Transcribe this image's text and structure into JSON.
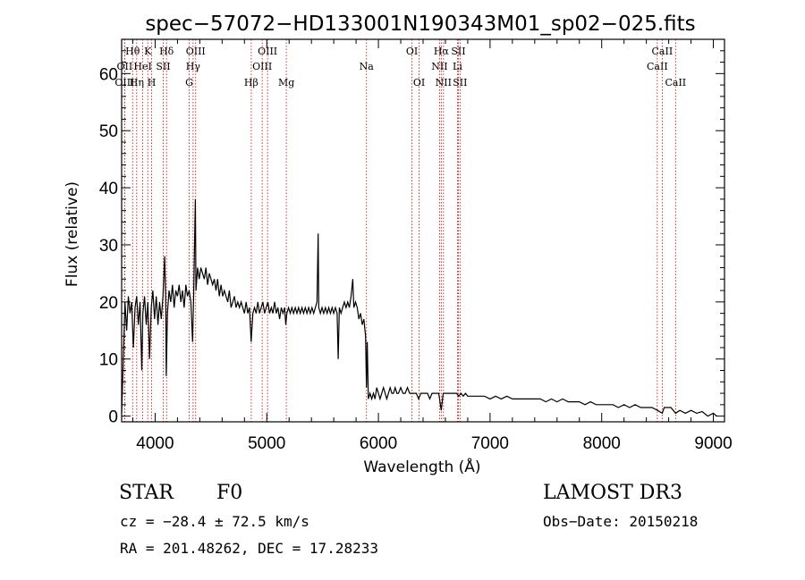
{
  "chart_data": {
    "type": "line",
    "title": "spec−57072−HD133001N190343M01_sp02−025.fits",
    "xlabel": "Wavelength (Å)",
    "ylabel": "Flux (relative)",
    "xlim": [
      3700,
      9100
    ],
    "ylim": [
      -1,
      66
    ],
    "xticks": [
      4000,
      5000,
      6000,
      7000,
      8000,
      9000
    ],
    "yticks": [
      0,
      10,
      20,
      30,
      40,
      50,
      60
    ],
    "series": [
      {
        "name": "spectrum",
        "points": [
          [
            3700,
            0.5
          ],
          [
            3715,
            10
          ],
          [
            3730,
            20
          ],
          [
            3745,
            15
          ],
          [
            3760,
            21
          ],
          [
            3775,
            18
          ],
          [
            3790,
            20
          ],
          [
            3805,
            12
          ],
          [
            3820,
            19
          ],
          [
            3835,
            21
          ],
          [
            3850,
            16
          ],
          [
            3865,
            20
          ],
          [
            3880,
            8
          ],
          [
            3890,
            18
          ],
          [
            3905,
            21
          ],
          [
            3920,
            16
          ],
          [
            3935,
            20
          ],
          [
            3950,
            10
          ],
          [
            3965,
            19
          ],
          [
            3980,
            22
          ],
          [
            3995,
            17
          ],
          [
            4010,
            21
          ],
          [
            4025,
            16
          ],
          [
            4040,
            20
          ],
          [
            4055,
            17
          ],
          [
            4070,
            21
          ],
          [
            4085,
            28
          ],
          [
            4095,
            20
          ],
          [
            4100,
            7
          ],
          [
            4110,
            18
          ],
          [
            4125,
            22
          ],
          [
            4140,
            20
          ],
          [
            4155,
            23
          ],
          [
            4170,
            19
          ],
          [
            4185,
            22
          ],
          [
            4200,
            21
          ],
          [
            4215,
            23
          ],
          [
            4230,
            20
          ],
          [
            4245,
            22
          ],
          [
            4260,
            19
          ],
          [
            4275,
            23
          ],
          [
            4290,
            21
          ],
          [
            4305,
            22
          ],
          [
            4320,
            20
          ],
          [
            4335,
            13
          ],
          [
            4345,
            21
          ],
          [
            4360,
            38
          ],
          [
            4366,
            22
          ],
          [
            4380,
            26
          ],
          [
            4395,
            24
          ],
          [
            4410,
            26
          ],
          [
            4425,
            25
          ],
          [
            4440,
            24
          ],
          [
            4455,
            26
          ],
          [
            4470,
            23
          ],
          [
            4485,
            25
          ],
          [
            4500,
            24
          ],
          [
            4515,
            23
          ],
          [
            4530,
            24
          ],
          [
            4545,
            22
          ],
          [
            4560,
            24
          ],
          [
            4575,
            21
          ],
          [
            4590,
            23
          ],
          [
            4605,
            21
          ],
          [
            4620,
            22
          ],
          [
            4635,
            21
          ],
          [
            4650,
            20
          ],
          [
            4665,
            22
          ],
          [
            4680,
            19
          ],
          [
            4695,
            20
          ],
          [
            4710,
            21
          ],
          [
            4725,
            19
          ],
          [
            4740,
            20
          ],
          [
            4755,
            19
          ],
          [
            4770,
            20
          ],
          [
            4785,
            19
          ],
          [
            4800,
            18
          ],
          [
            4815,
            20
          ],
          [
            4830,
            18
          ],
          [
            4845,
            19
          ],
          [
            4860,
            13
          ],
          [
            4875,
            18
          ],
          [
            4890,
            19
          ],
          [
            4905,
            18
          ],
          [
            4920,
            20
          ],
          [
            4935,
            18
          ],
          [
            4950,
            19
          ],
          [
            4965,
            20
          ],
          [
            4980,
            18
          ],
          [
            4995,
            19
          ],
          [
            5010,
            20
          ],
          [
            5025,
            18
          ],
          [
            5040,
            19
          ],
          [
            5055,
            18
          ],
          [
            5070,
            20
          ],
          [
            5085,
            18
          ],
          [
            5100,
            19
          ],
          [
            5115,
            17
          ],
          [
            5130,
            19
          ],
          [
            5145,
            18
          ],
          [
            5160,
            19
          ],
          [
            5170,
            16
          ],
          [
            5180,
            18
          ],
          [
            5195,
            19
          ],
          [
            5210,
            18
          ],
          [
            5225,
            19
          ],
          [
            5240,
            18
          ],
          [
            5255,
            19
          ],
          [
            5270,
            18
          ],
          [
            5285,
            19
          ],
          [
            5300,
            18
          ],
          [
            5315,
            19
          ],
          [
            5330,
            18
          ],
          [
            5345,
            19
          ],
          [
            5360,
            18
          ],
          [
            5375,
            19
          ],
          [
            5390,
            18
          ],
          [
            5405,
            19
          ],
          [
            5420,
            18
          ],
          [
            5435,
            19
          ],
          [
            5450,
            20
          ],
          [
            5460,
            32
          ],
          [
            5466,
            19
          ],
          [
            5480,
            18
          ],
          [
            5495,
            19
          ],
          [
            5510,
            18
          ],
          [
            5525,
            19
          ],
          [
            5540,
            18
          ],
          [
            5555,
            19
          ],
          [
            5570,
            18
          ],
          [
            5585,
            19
          ],
          [
            5600,
            18
          ],
          [
            5615,
            19
          ],
          [
            5630,
            18
          ],
          [
            5640,
            10
          ],
          [
            5650,
            19
          ],
          [
            5665,
            18
          ],
          [
            5680,
            19
          ],
          [
            5695,
            20
          ],
          [
            5710,
            19
          ],
          [
            5725,
            20
          ],
          [
            5740,
            19
          ],
          [
            5755,
            21
          ],
          [
            5770,
            24
          ],
          [
            5780,
            19
          ],
          [
            5795,
            20
          ],
          [
            5810,
            19
          ],
          [
            5825,
            17
          ],
          [
            5840,
            18
          ],
          [
            5855,
            16
          ],
          [
            5870,
            17
          ],
          [
            5885,
            14
          ],
          [
            5893,
            5
          ],
          [
            5900,
            13
          ],
          [
            5910,
            3
          ],
          [
            5925,
            4
          ],
          [
            5940,
            3
          ],
          [
            5955,
            4
          ],
          [
            5970,
            3
          ],
          [
            5985,
            5
          ],
          [
            6000,
            4
          ],
          [
            6015,
            3
          ],
          [
            6030,
            4
          ],
          [
            6045,
            5
          ],
          [
            6060,
            4
          ],
          [
            6075,
            3
          ],
          [
            6090,
            4
          ],
          [
            6105,
            5
          ],
          [
            6120,
            4
          ],
          [
            6135,
            4
          ],
          [
            6150,
            5
          ],
          [
            6165,
            4
          ],
          [
            6180,
            4
          ],
          [
            6200,
            5
          ],
          [
            6220,
            4
          ],
          [
            6240,
            4
          ],
          [
            6260,
            5
          ],
          [
            6280,
            4
          ],
          [
            6300,
            4
          ],
          [
            6320,
            4
          ],
          [
            6340,
            4
          ],
          [
            6360,
            3
          ],
          [
            6380,
            4
          ],
          [
            6400,
            4
          ],
          [
            6420,
            4
          ],
          [
            6440,
            4
          ],
          [
            6460,
            3
          ],
          [
            6480,
            4
          ],
          [
            6500,
            4
          ],
          [
            6520,
            4
          ],
          [
            6540,
            4
          ],
          [
            6563,
            1
          ],
          [
            6580,
            4
          ],
          [
            6600,
            4
          ],
          [
            6620,
            4
          ],
          [
            6640,
            4
          ],
          [
            6660,
            4
          ],
          [
            6680,
            4
          ],
          [
            6700,
            4
          ],
          [
            6720,
            3.5
          ],
          [
            6740,
            4
          ],
          [
            6760,
            3.5
          ],
          [
            6780,
            4
          ],
          [
            6800,
            3.5
          ],
          [
            6850,
            3.5
          ],
          [
            6900,
            3.5
          ],
          [
            6950,
            3.5
          ],
          [
            7000,
            3
          ],
          [
            7050,
            3.5
          ],
          [
            7100,
            3
          ],
          [
            7150,
            3.5
          ],
          [
            7200,
            3
          ],
          [
            7250,
            3
          ],
          [
            7300,
            3
          ],
          [
            7350,
            3
          ],
          [
            7400,
            3
          ],
          [
            7450,
            3
          ],
          [
            7500,
            2.5
          ],
          [
            7550,
            3
          ],
          [
            7600,
            2.5
          ],
          [
            7650,
            3
          ],
          [
            7700,
            2.5
          ],
          [
            7750,
            2.5
          ],
          [
            7800,
            2.5
          ],
          [
            7850,
            2
          ],
          [
            7900,
            2.5
          ],
          [
            7950,
            2
          ],
          [
            8000,
            2
          ],
          [
            8050,
            2
          ],
          [
            8100,
            2
          ],
          [
            8150,
            1.5
          ],
          [
            8200,
            2
          ],
          [
            8250,
            1.5
          ],
          [
            8300,
            2
          ],
          [
            8350,
            1.5
          ],
          [
            8400,
            1.5
          ],
          [
            8450,
            1.5
          ],
          [
            8500,
            1
          ],
          [
            8542,
            0.5
          ],
          [
            8560,
            1.5
          ],
          [
            8600,
            1.5
          ],
          [
            8620,
            1.5
          ],
          [
            8662,
            0.5
          ],
          [
            8700,
            1
          ],
          [
            8750,
            0.5
          ],
          [
            8800,
            1
          ],
          [
            8850,
            0.5
          ],
          [
            8900,
            0.8
          ],
          [
            8950,
            0
          ],
          [
            9000,
            0.5
          ],
          [
            9030,
            0
          ]
        ]
      }
    ],
    "line_markers": [
      {
        "label": "Hθ",
        "wavelength": 3798,
        "row": 1
      },
      {
        "label": "OII",
        "wavelength": 3727,
        "row": 2
      },
      {
        "label": "OIII",
        "wavelength": 3727,
        "row": 3
      },
      {
        "label": "K",
        "wavelength": 3934,
        "row": 1
      },
      {
        "label": "HeI",
        "wavelength": 3889,
        "row": 2
      },
      {
        "label": "Hη",
        "wavelength": 3835,
        "row": 3
      },
      {
        "label": "H",
        "wavelength": 3969,
        "row": 3
      },
      {
        "label": "Hδ",
        "wavelength": 4102,
        "row": 1
      },
      {
        "label": "SII",
        "wavelength": 4072,
        "row": 2
      },
      {
        "label": "OIII",
        "wavelength": 4363,
        "row": 1
      },
      {
        "label": "Hγ",
        "wavelength": 4340,
        "row": 2
      },
      {
        "label": "G",
        "wavelength": 4305,
        "row": 3
      },
      {
        "label": "OIII",
        "wavelength": 5007,
        "row": 1
      },
      {
        "label": "OIII",
        "wavelength": 4959,
        "row": 2
      },
      {
        "label": "Hβ",
        "wavelength": 4861,
        "row": 3
      },
      {
        "label": "Mg",
        "wavelength": 5175,
        "row": 3
      },
      {
        "label": "Na",
        "wavelength": 5893,
        "row": 2
      },
      {
        "label": "OI",
        "wavelength": 6300,
        "row": 1
      },
      {
        "label": "OI",
        "wavelength": 6364,
        "row": 3
      },
      {
        "label": "Hα",
        "wavelength": 6563,
        "row": 1
      },
      {
        "label": "NII",
        "wavelength": 6548,
        "row": 2
      },
      {
        "label": "NII",
        "wavelength": 6583,
        "row": 3
      },
      {
        "label": "SII",
        "wavelength": 6716,
        "row": 1
      },
      {
        "label": "Li",
        "wavelength": 6708,
        "row": 2
      },
      {
        "label": "SII",
        "wavelength": 6731,
        "row": 3
      },
      {
        "label": "CaII",
        "wavelength": 8542,
        "row": 1
      },
      {
        "label": "CaII",
        "wavelength": 8498,
        "row": 2
      },
      {
        "label": "CaII",
        "wavelength": 8662,
        "row": 3
      }
    ]
  },
  "info": {
    "class": "STAR",
    "subclass": "F0",
    "survey": "LAMOST DR3",
    "cz": "cz = −28.4 ± 72.5 km/s",
    "obs_date": "Obs−Date: 20150218",
    "radec": "RA = 201.48262, DEC =  17.28233"
  },
  "colors": {
    "spectrum": "#000000",
    "marker": "#cc0000",
    "axes": "#000000"
  }
}
